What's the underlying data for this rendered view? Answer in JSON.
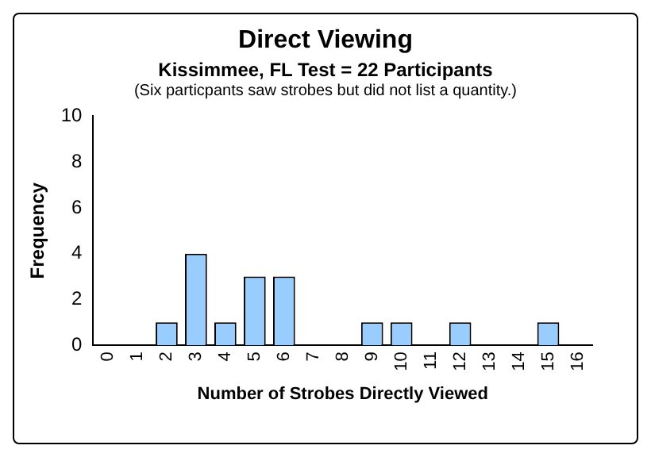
{
  "chart_data": {
    "type": "bar",
    "title": "Direct Viewing",
    "subtitle": "Kissimmee, FL Test = 22 Participants",
    "annotations": [
      "(Six particpants saw strobes but did not list a quantity.)"
    ],
    "xlabel": "Number of Strobes Directly Viewed",
    "ylabel": "Frequency",
    "categories": [
      "0",
      "1",
      "2",
      "3",
      "4",
      "5",
      "6",
      "7",
      "8",
      "9",
      "10",
      "11",
      "12",
      "13",
      "14",
      "15",
      "16"
    ],
    "values": [
      0,
      0,
      1,
      4,
      1,
      3,
      3,
      0,
      0,
      1,
      1,
      0,
      1,
      0,
      0,
      1,
      0
    ],
    "color": "#99ccff",
    "ylim": [
      0,
      10
    ],
    "yticks": [
      0,
      2,
      4,
      6,
      8,
      10
    ],
    "grid": false,
    "legend": false
  }
}
